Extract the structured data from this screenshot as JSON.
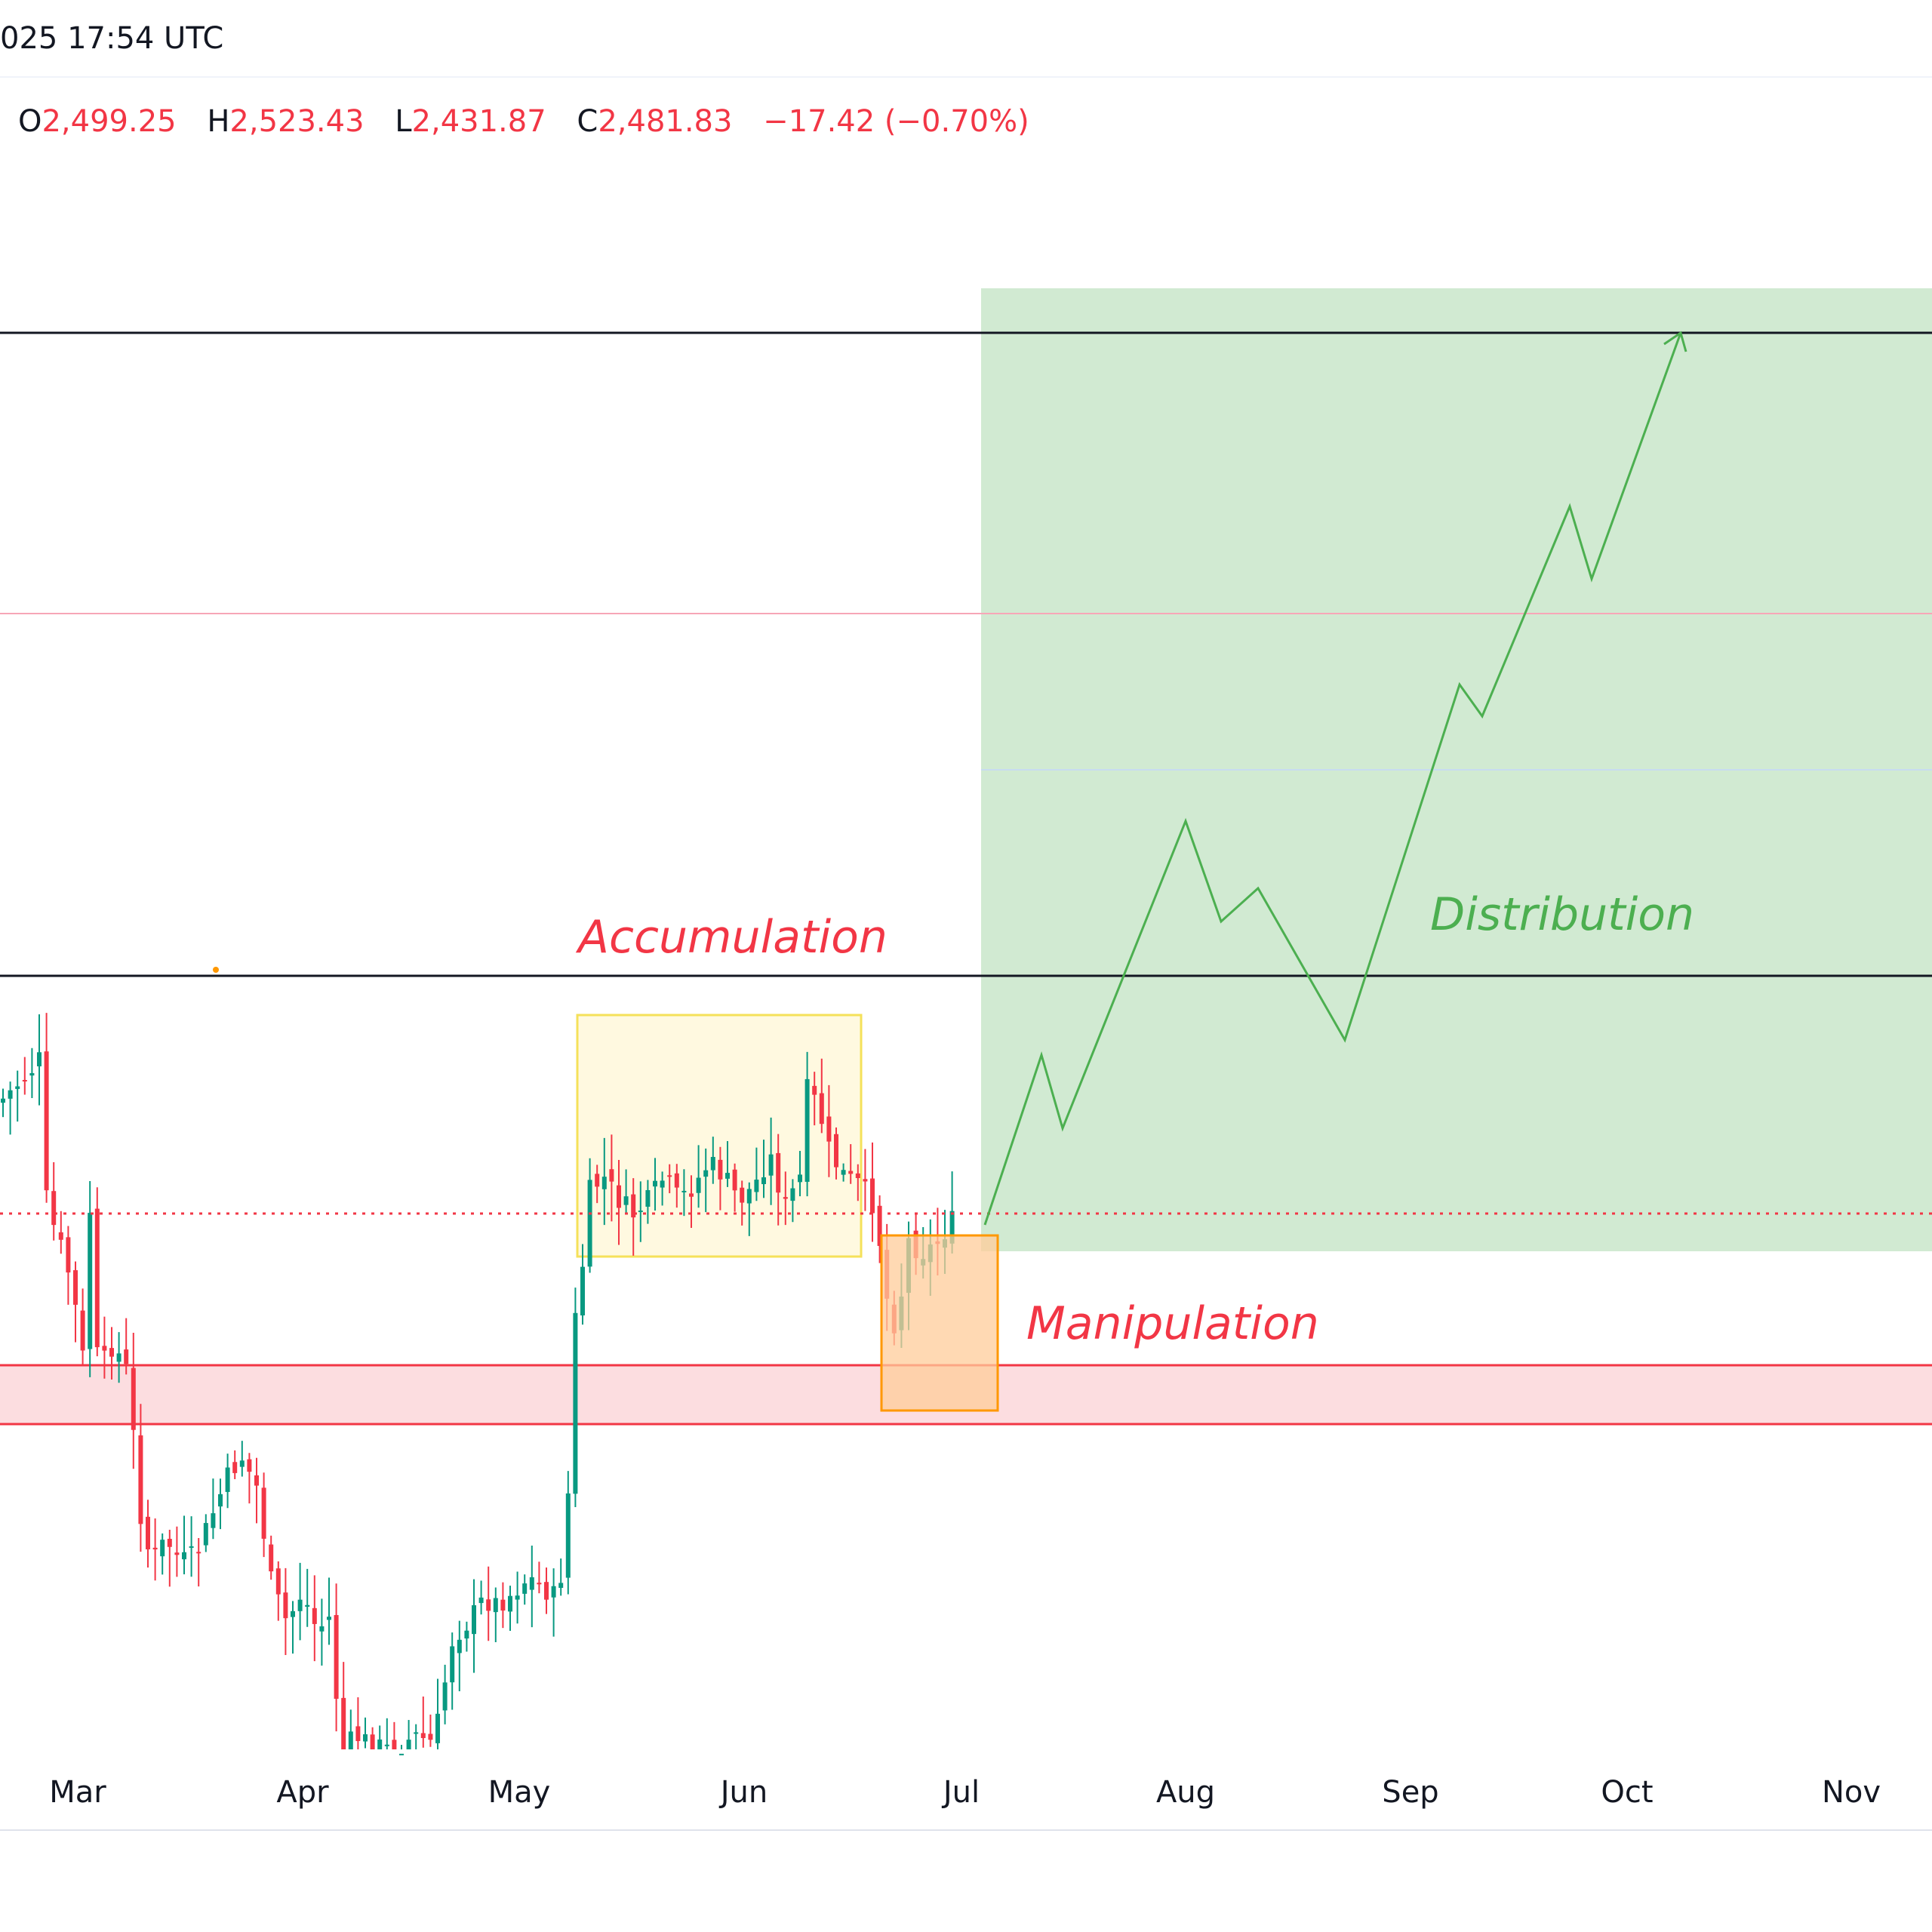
{
  "header": {
    "datetime": "025 17:54 UTC"
  },
  "ohlc": {
    "o_label": "O",
    "o_value": "2,499.25",
    "h_label": "H",
    "h_value": "2,523.43",
    "l_label": "L",
    "l_value": "2,431.87",
    "c_label": "C",
    "c_value": "2,481.83",
    "change": "−17.42 (−0.70%)"
  },
  "colors": {
    "up": "#089981",
    "down": "#f23645",
    "projection": "#4caf50",
    "zone_fill": "#d1ead2",
    "accumulation_box": "#fff9e0",
    "manipulation_box": "#ffd7ad",
    "support_band": "#fcdde0",
    "annotation_red": "#f23645",
    "annotation_green": "#4caf50"
  },
  "annotations": {
    "accumulation": "Accumulation",
    "manipulation": "Manipulation",
    "distribution": "Distribution"
  },
  "chart_data": {
    "type": "candlestick",
    "x_axis_labels": [
      "Mar",
      "Apr",
      "May",
      "Jun",
      "Jul",
      "Aug",
      "Sep",
      "Oct",
      "Nov"
    ],
    "last_close": 2481.83,
    "grid": false
  }
}
